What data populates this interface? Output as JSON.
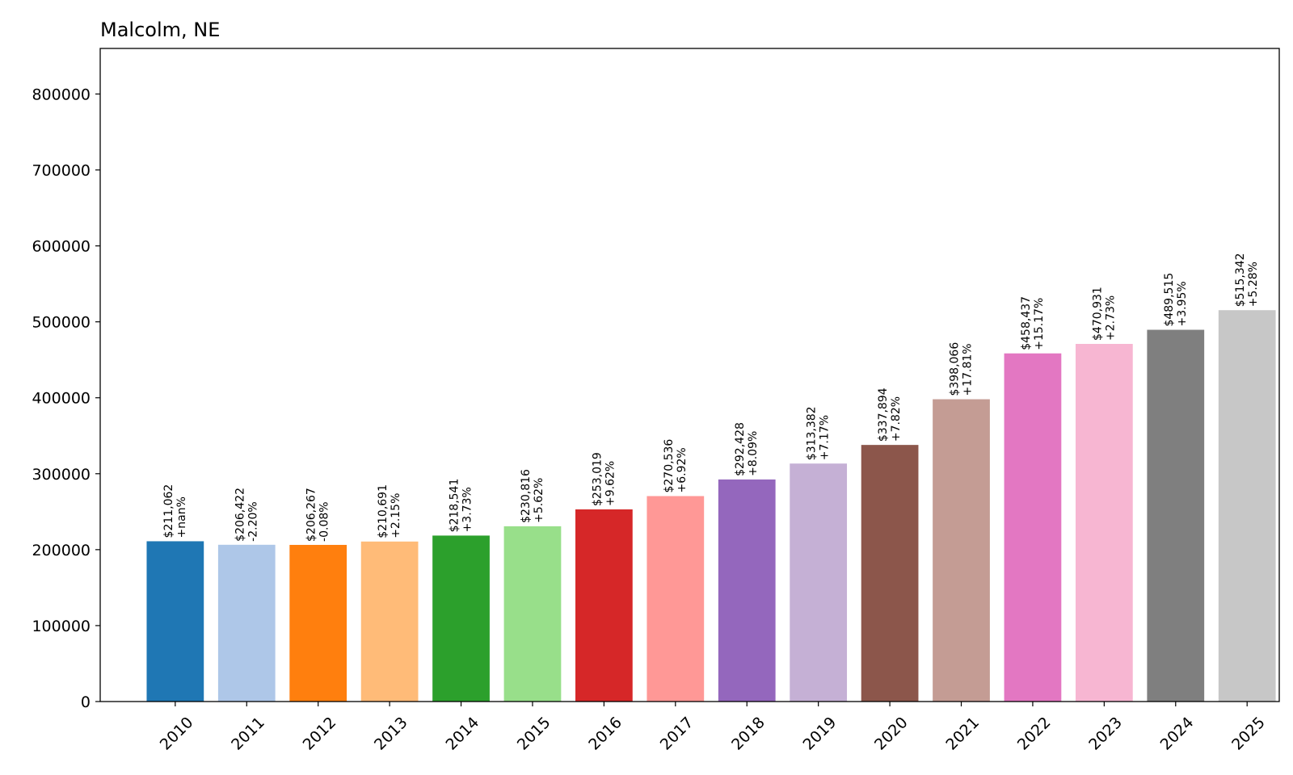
{
  "chart_data": {
    "type": "bar",
    "title": "Malcolm, NE",
    "xlabel": "",
    "ylabel": "",
    "ylim": [
      0,
      860000
    ],
    "yticks": [
      0,
      100000,
      200000,
      300000,
      400000,
      500000,
      600000,
      700000,
      800000
    ],
    "ytick_labels": [
      "0",
      "100000",
      "200000",
      "300000",
      "400000",
      "500000",
      "600000",
      "700000",
      "800000"
    ],
    "grid": false,
    "legend": "none",
    "categories": [
      "2010",
      "2011",
      "2012",
      "2013",
      "2014",
      "2015",
      "2016",
      "2017",
      "2018",
      "2019",
      "2020",
      "2021",
      "2022",
      "2023",
      "2024",
      "2025"
    ],
    "values": [
      211062,
      206422,
      206267,
      210691,
      218541,
      230816,
      253019,
      270536,
      292428,
      313382,
      337894,
      398066,
      458437,
      470931,
      489515,
      515342
    ],
    "value_labels": [
      "$211,062",
      "$206,422",
      "$206,267",
      "$210,691",
      "$218,541",
      "$230,816",
      "$253,019",
      "$270,536",
      "$292,428",
      "$313,382",
      "$337,894",
      "$398,066",
      "$458,437",
      "$470,931",
      "$489,515",
      "$515,342"
    ],
    "change_labels": [
      "+nan%",
      "-2.20%",
      "-0.08%",
      "+2.15%",
      "+3.73%",
      "+5.62%",
      "+9.62%",
      "+6.92%",
      "+8.09%",
      "+7.17%",
      "+7.82%",
      "+17.81%",
      "+15.17%",
      "+2.73%",
      "+3.95%",
      "+5.28%"
    ],
    "colors": [
      "#1f77b4",
      "#aec7e8",
      "#ff7f0e",
      "#ffbb78",
      "#2ca02c",
      "#98df8a",
      "#d62728",
      "#ff9896",
      "#9467bd",
      "#c5b0d5",
      "#8c564b",
      "#c49c94",
      "#e377c2",
      "#f7b6d2",
      "#7f7f7f",
      "#c7c7c7"
    ]
  }
}
